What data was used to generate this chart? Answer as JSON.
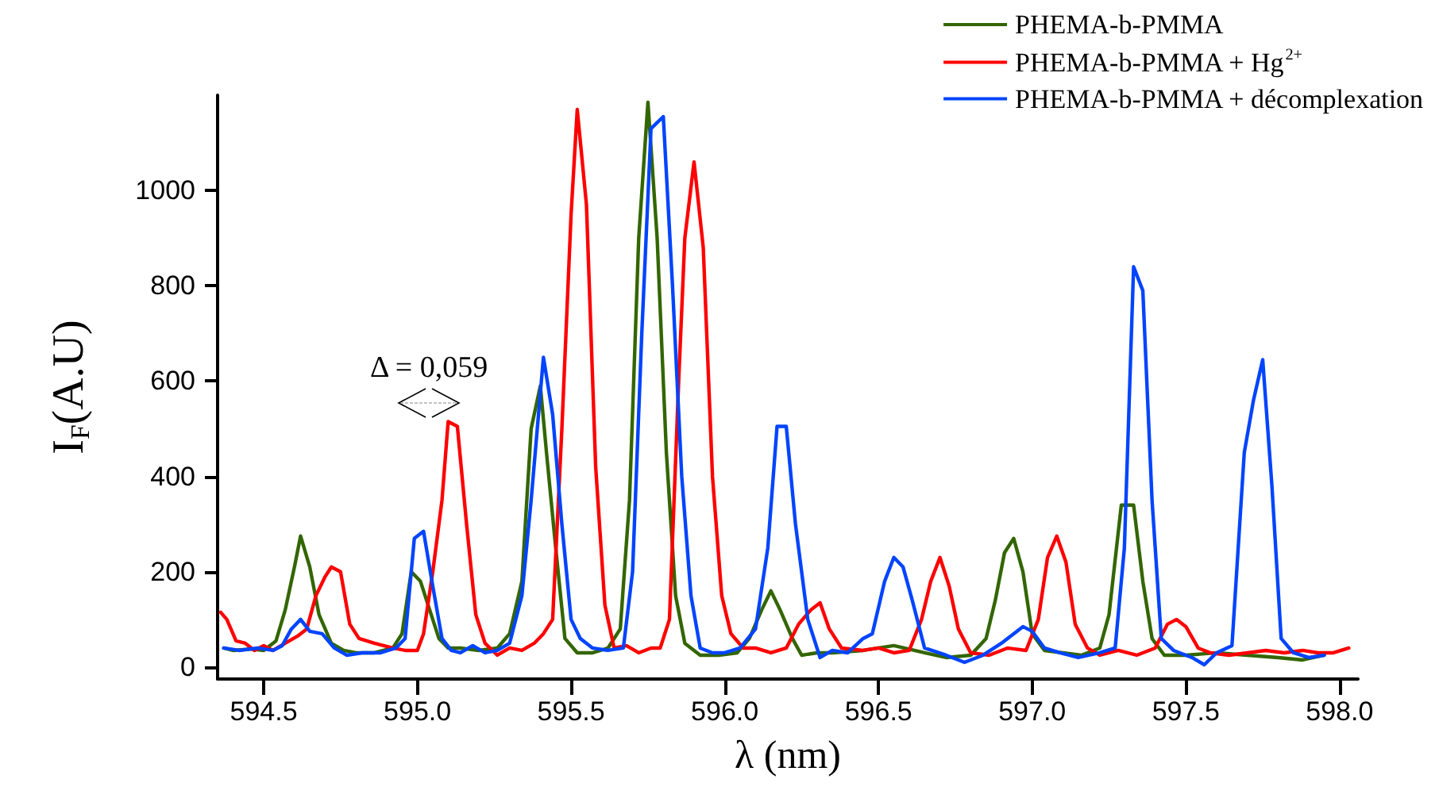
{
  "chart_data": {
    "type": "line",
    "xlabel": "λ (nm)",
    "ylabel": "I$_{F}$(A.U)",
    "xlim": [
      594.35,
      598.06
    ],
    "ylim": [
      -25,
      1200
    ],
    "xticks": [
      {
        "value": 594.5,
        "label": "594.5"
      },
      {
        "value": 595,
        "label": "595.0"
      },
      {
        "value": 595.5,
        "label": "595.5"
      },
      {
        "value": 596,
        "label": "596.0"
      },
      {
        "value": 596.5,
        "label": "596.5"
      },
      {
        "value": 597,
        "label": "597.0"
      },
      {
        "value": 597.5,
        "label": "597.5"
      },
      {
        "value": 598,
        "label": "598.0"
      }
    ],
    "yticks": [
      0,
      200,
      400,
      600,
      800,
      1000
    ],
    "grid": false,
    "legend": "top right",
    "marker": "none",
    "line_style": "solid",
    "annotations": [
      "Δ = 0,059"
    ],
    "series": [
      {
        "name": "PHEMA-b-PMMA",
        "color": "#336600",
        "x": [
          594.37,
          594.4,
          594.46,
          594.5,
          594.54,
          594.57,
          594.6,
          594.62,
          594.65,
          594.68,
          594.72,
          594.76,
          594.8,
          594.86,
          594.92,
          594.95,
          594.98,
          595.01,
          595.04,
          595.07,
          595.1,
          595.14,
          595.2,
          595.26,
          595.3,
          595.34,
          595.37,
          595.4,
          595.42,
          595.45,
          595.48,
          595.52,
          595.57,
          595.62,
          595.66,
          595.69,
          595.72,
          595.75,
          595.78,
          595.81,
          595.84,
          595.87,
          595.92,
          595.98,
          596.04,
          596.08,
          596.12,
          596.15,
          596.18,
          596.22,
          596.25,
          596.3,
          596.35,
          596.45,
          596.55,
          596.65,
          596.72,
          596.8,
          596.85,
          596.88,
          596.91,
          596.94,
          596.97,
          597.0,
          597.04,
          597.1,
          597.16,
          597.22,
          597.25,
          597.29,
          597.33,
          597.36,
          597.39,
          597.43,
          597.5,
          597.6,
          597.7,
          597.8,
          597.88,
          597.95
        ],
        "values": [
          40,
          35,
          38,
          35,
          55,
          120,
          210,
          275,
          210,
          110,
          50,
          35,
          30,
          30,
          40,
          70,
          200,
          180,
          120,
          60,
          40,
          40,
          35,
          40,
          70,
          180,
          500,
          590,
          450,
          250,
          60,
          30,
          30,
          40,
          80,
          350,
          900,
          1185,
          900,
          450,
          150,
          50,
          25,
          25,
          30,
          60,
          120,
          160,
          120,
          60,
          25,
          30,
          30,
          35,
          45,
          30,
          20,
          25,
          60,
          140,
          240,
          270,
          200,
          70,
          35,
          30,
          25,
          40,
          110,
          340,
          340,
          180,
          60,
          25,
          25,
          30,
          25,
          20,
          15,
          25
        ]
      },
      {
        "name": "PHEMA-b-PMMA + Hg$^{2+}$",
        "color": "#ff0000",
        "x": [
          594.36,
          594.38,
          594.41,
          594.44,
          594.47,
          594.5,
          594.53,
          594.57,
          594.61,
          594.64,
          594.67,
          594.7,
          594.72,
          594.75,
          594.78,
          594.81,
          594.86,
          594.92,
          594.96,
          595.0,
          595.02,
          595.05,
          595.08,
          595.1,
          595.13,
          595.16,
          595.19,
          595.22,
          595.26,
          595.3,
          595.34,
          595.38,
          595.41,
          595.44,
          595.47,
          595.5,
          595.52,
          595.55,
          595.58,
          595.61,
          595.64,
          595.68,
          595.72,
          595.76,
          595.79,
          595.82,
          595.85,
          595.87,
          595.9,
          595.93,
          595.96,
          595.99,
          596.02,
          596.06,
          596.1,
          596.15,
          596.2,
          596.24,
          596.28,
          596.31,
          596.34,
          596.38,
          596.45,
          596.5,
          596.55,
          596.6,
          596.64,
          596.67,
          596.7,
          596.73,
          596.76,
          596.8,
          596.86,
          596.92,
          596.98,
          597.02,
          597.05,
          597.08,
          597.11,
          597.14,
          597.18,
          597.22,
          597.28,
          597.34,
          597.4,
          597.44,
          597.47,
          597.5,
          597.54,
          597.58,
          597.64,
          597.7,
          597.76,
          597.82,
          597.88,
          597.93,
          597.98,
          598.03
        ],
        "values": [
          115,
          100,
          55,
          50,
          35,
          45,
          35,
          50,
          65,
          80,
          150,
          190,
          210,
          200,
          90,
          60,
          50,
          40,
          35,
          35,
          70,
          200,
          350,
          515,
          505,
          300,
          110,
          50,
          25,
          40,
          35,
          50,
          70,
          100,
          500,
          950,
          1170,
          970,
          420,
          130,
          40,
          45,
          30,
          40,
          40,
          100,
          600,
          900,
          1060,
          880,
          400,
          150,
          70,
          40,
          40,
          30,
          40,
          90,
          120,
          135,
          80,
          40,
          35,
          40,
          30,
          35,
          100,
          180,
          230,
          170,
          80,
          30,
          25,
          40,
          35,
          100,
          230,
          275,
          220,
          90,
          40,
          25,
          35,
          25,
          40,
          90,
          100,
          85,
          40,
          30,
          25,
          30,
          35,
          30,
          35,
          30,
          30,
          40
        ]
      },
      {
        "name": "PHEMA-b-PMMA + décomplexation",
        "color": "#0044ff",
        "x": [
          594.37,
          594.42,
          594.48,
          594.53,
          594.56,
          594.59,
          594.62,
          594.65,
          594.69,
          594.73,
          594.77,
          594.82,
          594.88,
          594.93,
          594.96,
          594.99,
          595.02,
          595.05,
          595.08,
          595.11,
          595.14,
          595.18,
          595.22,
          595.26,
          595.3,
          595.34,
          595.37,
          595.41,
          595.44,
          595.47,
          595.5,
          595.53,
          595.57,
          595.62,
          595.67,
          595.7,
          595.73,
          595.76,
          595.8,
          595.83,
          595.86,
          595.89,
          595.92,
          595.96,
          596.0,
          596.05,
          596.1,
          596.14,
          596.17,
          596.2,
          596.23,
          596.27,
          596.31,
          596.35,
          596.4,
          596.45,
          596.48,
          596.52,
          596.55,
          596.58,
          596.61,
          596.65,
          596.72,
          596.78,
          596.84,
          596.9,
          596.94,
          596.97,
          597.0,
          597.04,
          597.09,
          597.15,
          597.22,
          597.27,
          597.3,
          597.33,
          597.36,
          597.39,
          597.42,
          597.46,
          597.52,
          597.56,
          597.6,
          597.65,
          597.69,
          597.72,
          597.75,
          597.78,
          597.81,
          597.85,
          597.9,
          597.95
        ],
        "values": [
          40,
          35,
          40,
          35,
          45,
          80,
          100,
          75,
          70,
          40,
          25,
          30,
          30,
          40,
          60,
          270,
          285,
          170,
          60,
          35,
          30,
          45,
          30,
          35,
          50,
          150,
          350,
          650,
          530,
          300,
          100,
          60,
          40,
          35,
          40,
          200,
          700,
          1130,
          1155,
          800,
          400,
          150,
          40,
          30,
          30,
          40,
          80,
          250,
          505,
          505,
          300,
          100,
          20,
          35,
          30,
          60,
          70,
          180,
          230,
          210,
          140,
          40,
          25,
          10,
          25,
          50,
          70,
          85,
          75,
          40,
          30,
          20,
          30,
          40,
          250,
          840,
          790,
          350,
          60,
          35,
          20,
          5,
          30,
          45,
          450,
          560,
          645,
          380,
          60,
          30,
          20,
          25
        ]
      }
    ]
  }
}
